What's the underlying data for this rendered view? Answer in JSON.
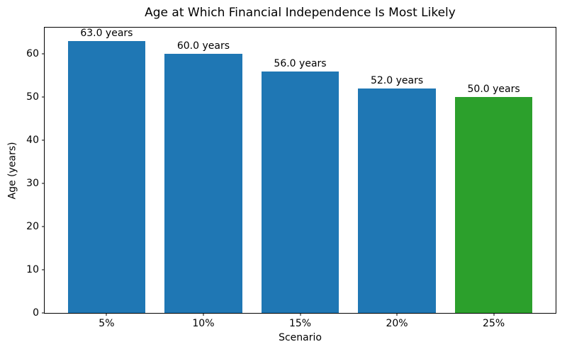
{
  "chart_data": {
    "type": "bar",
    "title": "Age at Which Financial Independence Is Most Likely",
    "xlabel": "Scenario",
    "ylabel": "Age (years)",
    "categories": [
      "5%",
      "10%",
      "15%",
      "20%",
      "25%"
    ],
    "values": [
      63.0,
      60.0,
      56.0,
      52.0,
      50.0
    ],
    "bar_labels": [
      "63.0 years",
      "60.0 years",
      "56.0 years",
      "52.0 years",
      "50.0 years"
    ],
    "bar_colors": [
      "#1f77b4",
      "#1f77b4",
      "#1f77b4",
      "#1f77b4",
      "#2ca02c"
    ],
    "default_color": "#1f77b4",
    "highlight_color": "#2ca02c",
    "yticks": [
      0,
      10,
      20,
      30,
      40,
      50,
      60
    ],
    "ylim": [
      0,
      66.15
    ],
    "bar_width_fraction": 0.8,
    "grid": false,
    "legend_position": "none",
    "background_color": "#ffffff",
    "axis_color": "#000000"
  }
}
